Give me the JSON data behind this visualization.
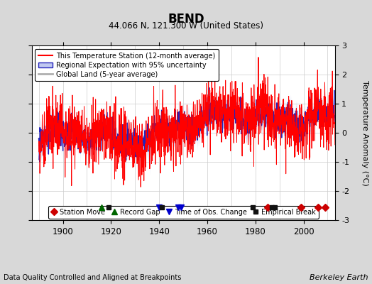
{
  "title": "BEND",
  "subtitle": "44.066 N, 121.300 W (United States)",
  "xlabel_bottom": "Data Quality Controlled and Aligned at Breakpoints",
  "xlabel_right": "Berkeley Earth",
  "ylabel": "Temperature Anomaly (°C)",
  "year_start": 1890,
  "year_end": 2013,
  "ylim": [
    -3,
    3
  ],
  "xlim": [
    1887,
    2013
  ],
  "xticks": [
    1900,
    1920,
    1940,
    1960,
    1980,
    2000
  ],
  "yticks": [
    -3,
    -2,
    -1,
    0,
    1,
    2,
    3
  ],
  "bg_color": "#d8d8d8",
  "plot_bg_color": "#ffffff",
  "station_color": "#ff0000",
  "regional_color": "#2222bb",
  "regional_shade_color": "#c0c8f0",
  "global_color": "#b0b0b0",
  "legend_entries": [
    "This Temperature Station (12-month average)",
    "Regional Expectation with 95% uncertainty",
    "Global Land (5-year average)"
  ],
  "station_moves": [
    1985,
    1999,
    2006,
    2009
  ],
  "record_gaps": [
    1916
  ],
  "time_obs_changes": [
    1940,
    1948,
    1949
  ],
  "empirical_breaks": [
    1919,
    1941,
    1979,
    1987,
    1988
  ]
}
